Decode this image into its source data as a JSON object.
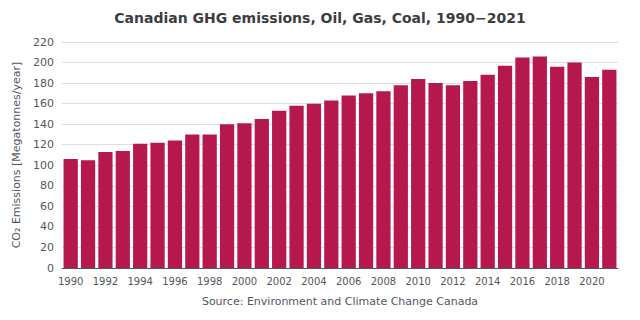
{
  "chart_data": {
    "type": "bar",
    "title": "Canadian GHG emissions, Oil, Gas, Coal, 1990−2021",
    "xlabel": "Source: Environment and Climate Change Canada",
    "ylabel": "CO₂ Emissions [Megatonnes/year]",
    "categories": [
      "1990",
      null,
      "1992",
      null,
      "1994",
      null,
      "1996",
      null,
      "1998",
      null,
      "2000",
      null,
      "2002",
      null,
      "2004",
      null,
      "2006",
      null,
      "2008",
      null,
      "2010",
      null,
      "2012",
      null,
      "2014",
      null,
      "2016",
      null,
      "2018",
      null,
      "2020",
      null
    ],
    "values": [
      106,
      105,
      113,
      114,
      121,
      122,
      124,
      130,
      130,
      140,
      141,
      145,
      153,
      158,
      160,
      163,
      168,
      170,
      172,
      178,
      184,
      180,
      178,
      182,
      188,
      197,
      205,
      206,
      196,
      200,
      186,
      193
    ],
    "color": "#b5174f",
    "ylim": [
      0,
      220
    ],
    "yticks": [
      0,
      20,
      40,
      60,
      80,
      100,
      120,
      140,
      160,
      180,
      200,
      220
    ],
    "grid": true
  }
}
